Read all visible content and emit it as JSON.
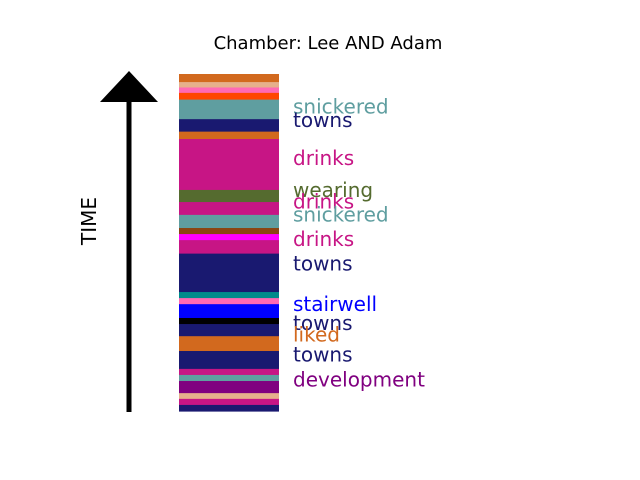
{
  "chart_data": {
    "type": "bar",
    "title": "Chamber: Lee AND Adam",
    "ylabel": "TIME",
    "grid": false,
    "legend": "none",
    "stripes": [
      {
        "color": "#d2691e",
        "start": 0.0,
        "end": 0.024
      },
      {
        "color": "#e6b08c",
        "start": 0.024,
        "end": 0.04
      },
      {
        "color": "#ff69b4",
        "start": 0.04,
        "end": 0.056
      },
      {
        "color": "#ff4500",
        "start": 0.056,
        "end": 0.076
      },
      {
        "color": "#5f9ea0",
        "start": 0.076,
        "end": 0.134
      },
      {
        "color": "#191970",
        "start": 0.134,
        "end": 0.171
      },
      {
        "color": "#d2691e",
        "start": 0.171,
        "end": 0.193
      },
      {
        "color": "#c71585",
        "start": 0.193,
        "end": 0.344
      },
      {
        "color": "#556b2f",
        "start": 0.344,
        "end": 0.38
      },
      {
        "color": "#c71585",
        "start": 0.38,
        "end": 0.418
      },
      {
        "color": "#5f9ea0",
        "start": 0.418,
        "end": 0.457
      },
      {
        "color": "#8b4513",
        "start": 0.457,
        "end": 0.475
      },
      {
        "color": "#ff00ff",
        "start": 0.475,
        "end": 0.493
      },
      {
        "color": "#c71585",
        "start": 0.493,
        "end": 0.533
      },
      {
        "color": "#191970",
        "start": 0.533,
        "end": 0.647
      },
      {
        "color": "#008b8b",
        "start": 0.647,
        "end": 0.665
      },
      {
        "color": "#ff69b4",
        "start": 0.665,
        "end": 0.683
      },
      {
        "color": "#0000ff",
        "start": 0.683,
        "end": 0.724
      },
      {
        "color": "#000000",
        "start": 0.724,
        "end": 0.742
      },
      {
        "color": "#191970",
        "start": 0.742,
        "end": 0.778
      },
      {
        "color": "#d2691e",
        "start": 0.778,
        "end": 0.822
      },
      {
        "color": "#191970",
        "start": 0.822,
        "end": 0.875
      },
      {
        "color": "#c71585",
        "start": 0.875,
        "end": 0.893
      },
      {
        "color": "#5f9ea0",
        "start": 0.893,
        "end": 0.911
      },
      {
        "color": "#800080",
        "start": 0.911,
        "end": 0.947
      },
      {
        "color": "#e6b08c",
        "start": 0.947,
        "end": 0.964
      },
      {
        "color": "#c71585",
        "start": 0.964,
        "end": 0.982
      },
      {
        "color": "#191970",
        "start": 0.982,
        "end": 1.0
      }
    ],
    "labels": [
      {
        "text": "snickered",
        "color": "#5f9ea0",
        "pos": 0.105
      },
      {
        "text": "towns",
        "color": "#191970",
        "pos": 0.145
      },
      {
        "text": "drinks",
        "color": "#c71585",
        "pos": 0.258
      },
      {
        "text": "wearing",
        "color": "#556b2f",
        "pos": 0.352
      },
      {
        "text": "drinks",
        "color": "#c71585",
        "pos": 0.387
      },
      {
        "text": "snickered",
        "color": "#5f9ea0",
        "pos": 0.425
      },
      {
        "text": "drinks",
        "color": "#c71585",
        "pos": 0.497
      },
      {
        "text": "towns",
        "color": "#191970",
        "pos": 0.57
      },
      {
        "text": "stairwell",
        "color": "#0000ff",
        "pos": 0.69
      },
      {
        "text": "towns",
        "color": "#191970",
        "pos": 0.746
      },
      {
        "text": "liked",
        "color": "#d2691e",
        "pos": 0.781
      },
      {
        "text": "towns",
        "color": "#191970",
        "pos": 0.84
      },
      {
        "text": "development",
        "color": "#800080",
        "pos": 0.914
      }
    ]
  }
}
